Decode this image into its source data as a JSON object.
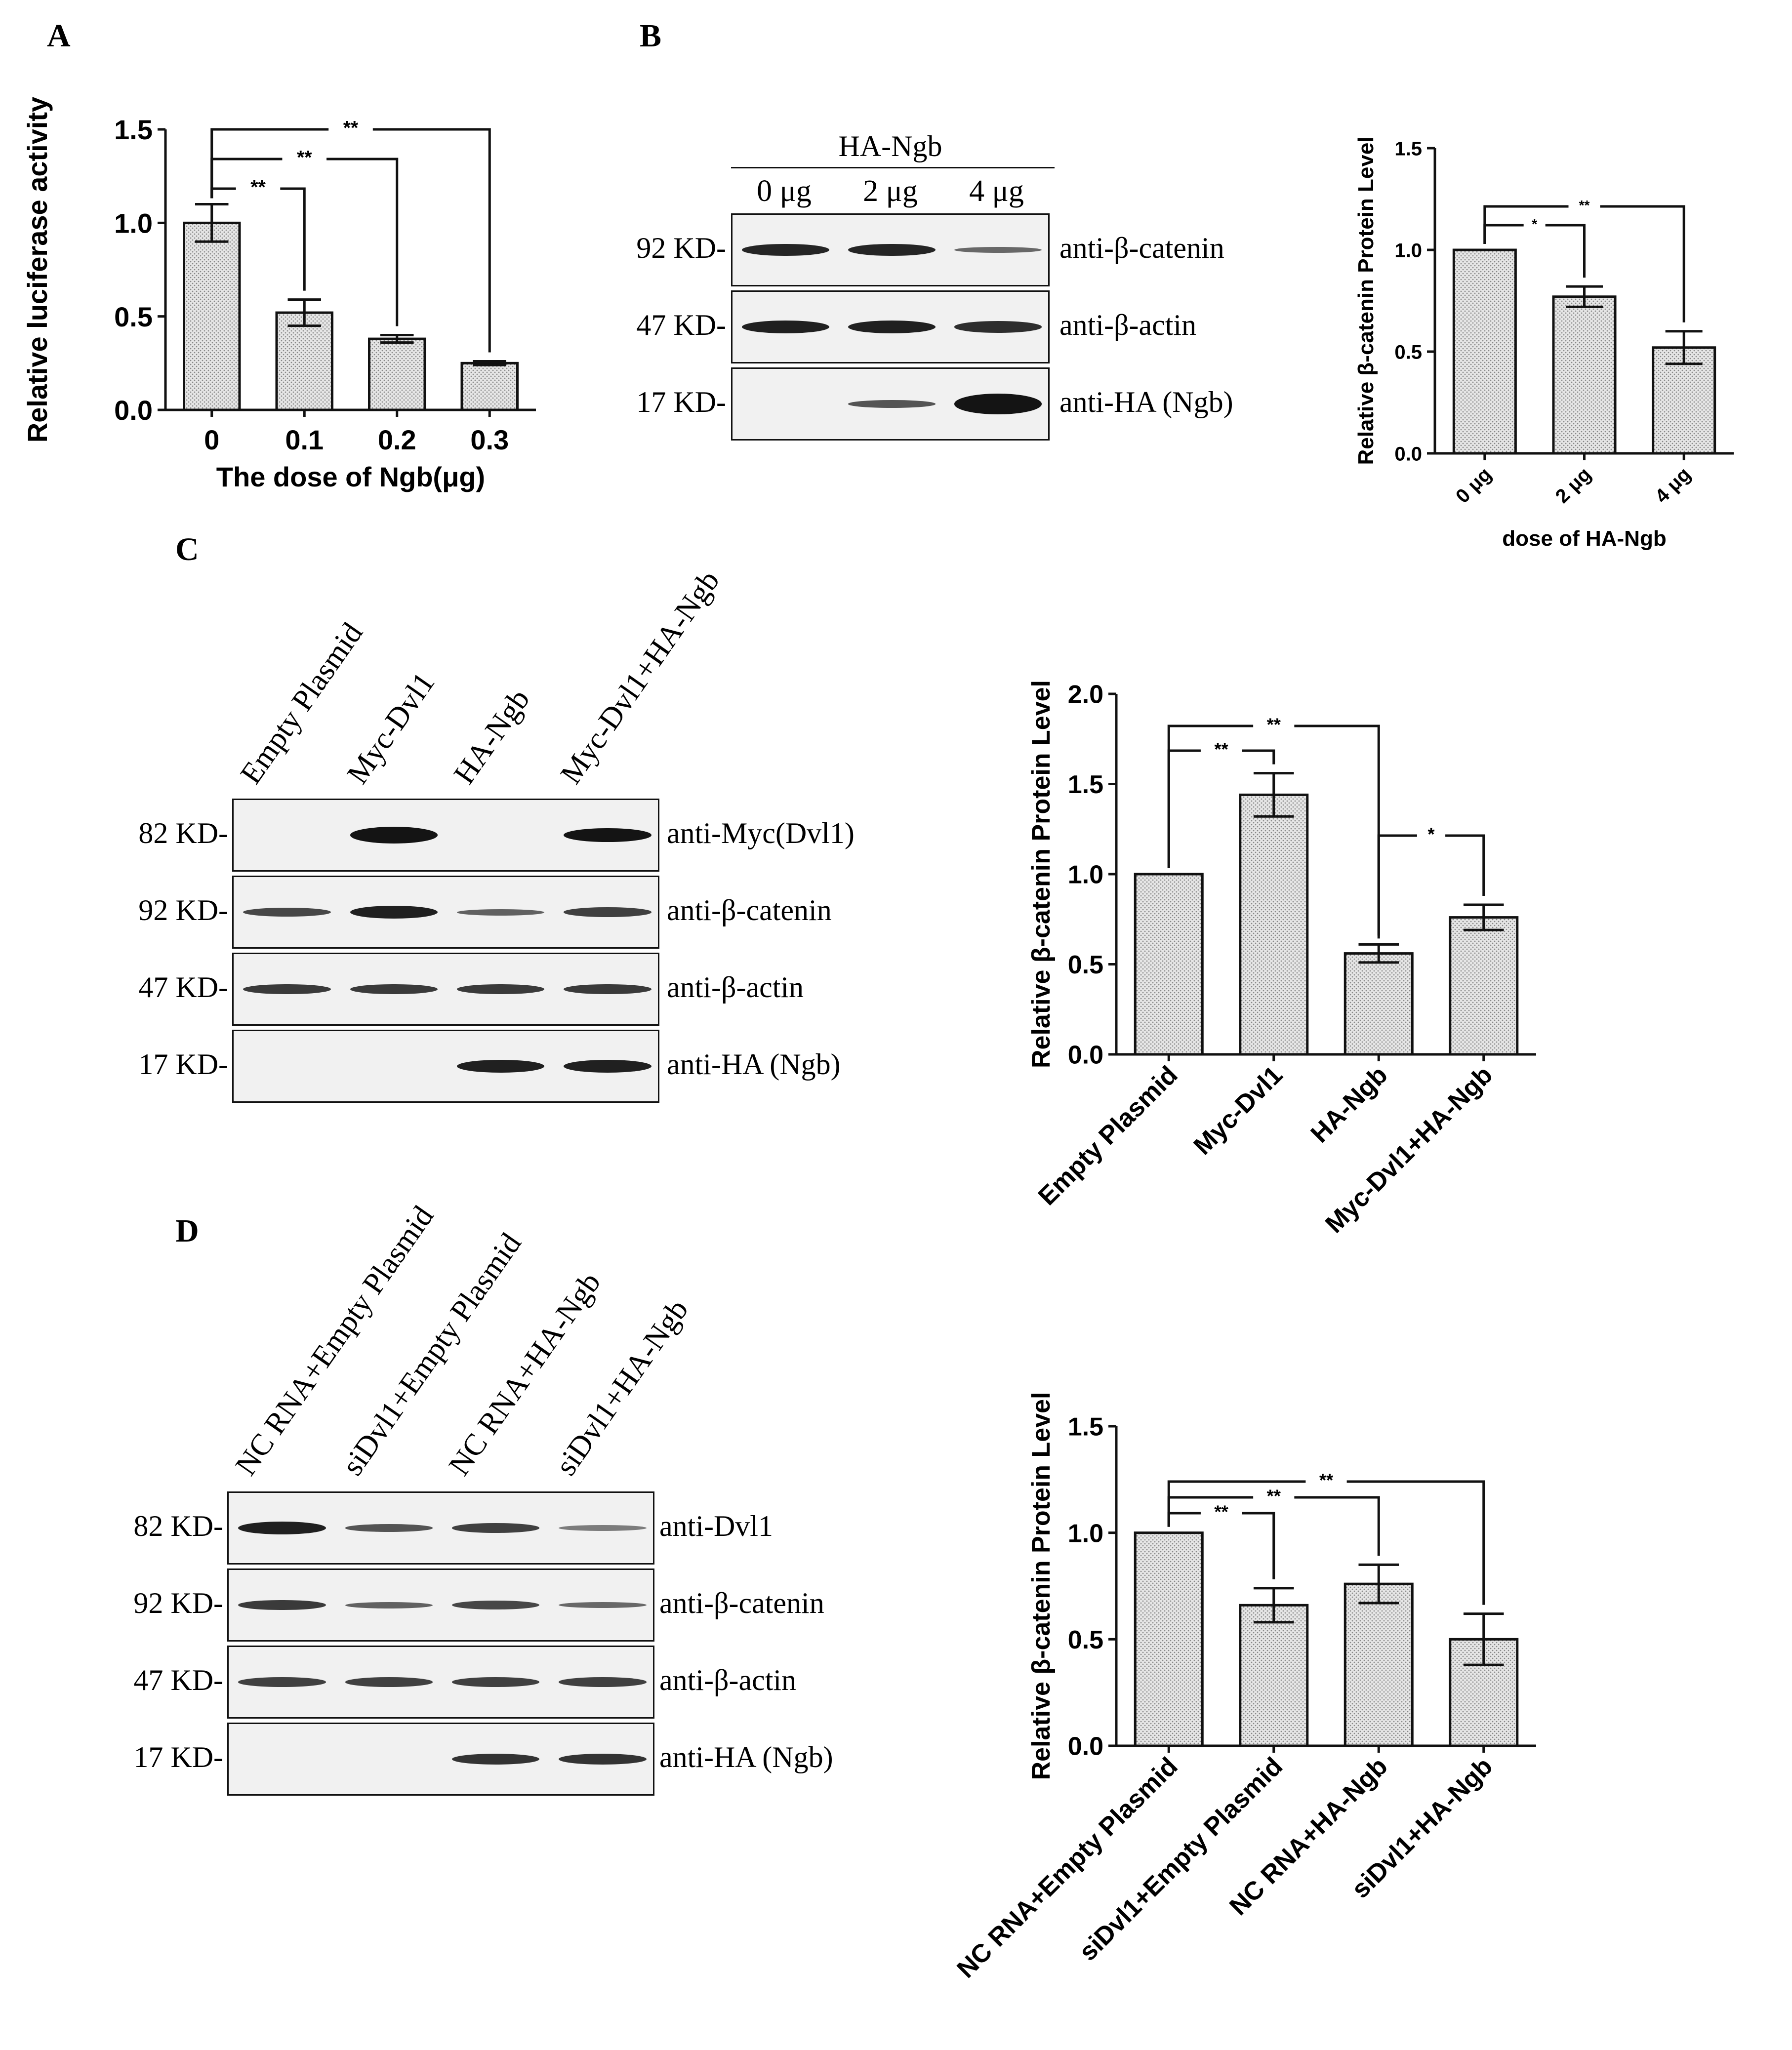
{
  "colors": {
    "bar_fill": "#dcdcdc",
    "bar_stroke": "#111111",
    "band": "#141414",
    "blot_bg": "#f1f1f1"
  },
  "panels": {
    "A": {
      "letter": "A"
    },
    "B": {
      "letter": "B",
      "group_label": "HA-Ngb",
      "lanes": [
        "0 μg",
        "2 μg",
        "4 μg"
      ],
      "rows": [
        {
          "kd": "92 KD-",
          "antibody": "anti-β-catenin",
          "bands": [
            0.95,
            0.95,
            0.45
          ]
        },
        {
          "kd": "47 KD-",
          "antibody": "anti-β-actin",
          "bands": [
            1,
            1,
            0.9
          ]
        },
        {
          "kd": "17 KD-",
          "antibody": "anti-HA (Ngb)",
          "bands": [
            0,
            0.6,
            1.6
          ]
        }
      ]
    },
    "C": {
      "letter": "C",
      "lanes": [
        "Empty Plasmid",
        "Myc-Dvl1",
        "HA-Ngb",
        "Myc-Dvl1+HA-Ngb"
      ],
      "rows": [
        {
          "kd": "82 KD-",
          "antibody": "anti-Myc(Dvl1)",
          "bands": [
            0,
            1.3,
            0,
            1.1
          ]
        },
        {
          "kd": "92 KD-",
          "antibody": "anti-β-catenin",
          "bands": [
            0.7,
            1,
            0.5,
            0.75
          ]
        },
        {
          "kd": "47 KD-",
          "antibody": "anti-β-actin",
          "bands": [
            0.8,
            0.8,
            0.8,
            0.8
          ]
        },
        {
          "kd": "17 KD-",
          "antibody": "anti-HA (Ngb)",
          "bands": [
            0,
            0,
            1.0,
            1.0
          ]
        }
      ]
    },
    "D": {
      "letter": "D",
      "lanes": [
        "NC RNA+Empty Plasmid",
        "siDvl1+Empty Plasmid",
        "NC RNA+HA-Ngb",
        "siDvl1+HA-Ngb"
      ],
      "rows": [
        {
          "kd": "82 KD-",
          "antibody": "anti-Dvl1",
          "bands": [
            1,
            0.6,
            0.75,
            0.3
          ]
        },
        {
          "kd": "92 KD-",
          "antibody": "anti-β-catenin",
          "bands": [
            0.8,
            0.5,
            0.7,
            0.45
          ]
        },
        {
          "kd": "47 KD-",
          "antibody": "anti-β-actin",
          "bands": [
            0.75,
            0.75,
            0.75,
            0.75
          ]
        },
        {
          "kd": "17 KD-",
          "antibody": "anti-HA (Ngb)",
          "bands": [
            0,
            0,
            0.85,
            0.85
          ]
        }
      ]
    }
  },
  "chart_data": [
    {
      "id": "A",
      "type": "bar",
      "categories": [
        "0",
        "0.1",
        "0.2",
        "0.3"
      ],
      "values": [
        1.0,
        0.52,
        0.38,
        0.25
      ],
      "errors": [
        0.1,
        0.07,
        0.02,
        0.01
      ],
      "xlabel": "The dose of Ngb(μg)",
      "ylabel": "Relative luciferase activity",
      "ylim": [
        0,
        1.5
      ],
      "yticks": [
        "0.0",
        "0.5",
        "1.0",
        "1.5"
      ],
      "significance": [
        {
          "from": 0,
          "to": 1,
          "label": "**"
        },
        {
          "from": 0,
          "to": 2,
          "label": "**"
        },
        {
          "from": 0,
          "to": 3,
          "label": "**"
        }
      ],
      "xtick_rotation": 0
    },
    {
      "id": "B",
      "type": "bar",
      "categories": [
        "0 μg",
        "2 μg",
        "4 μg"
      ],
      "values": [
        1.0,
        0.77,
        0.52
      ],
      "errors": [
        0,
        0.05,
        0.08
      ],
      "xlabel": "dose of HA-Ngb",
      "ylabel": "Relative β-catenin Protein Level",
      "ylim": [
        0,
        1.5
      ],
      "yticks": [
        "0.0",
        "0.5",
        "1.0",
        "1.5"
      ],
      "significance": [
        {
          "from": 0,
          "to": 1,
          "label": "*"
        },
        {
          "from": 0,
          "to": 2,
          "label": "**"
        }
      ],
      "xtick_rotation": -45
    },
    {
      "id": "C",
      "type": "bar",
      "categories": [
        "Empty Plasmid",
        "Myc-Dvl1",
        "HA-Ngb",
        "Myc-Dvl1+HA-Ngb"
      ],
      "values": [
        1.0,
        1.44,
        0.56,
        0.76
      ],
      "errors": [
        0,
        0.12,
        0.05,
        0.07
      ],
      "xlabel": "",
      "ylabel": "Relative β-catenin Protein Level",
      "ylim": [
        0,
        2.0
      ],
      "yticks": [
        "0.0",
        "0.5",
        "1.0",
        "1.5",
        "2.0"
      ],
      "significance": [
        {
          "from": 0,
          "to": 1,
          "label": "**"
        },
        {
          "from": 0,
          "to": 2,
          "label": "**"
        },
        {
          "from": 2,
          "to": 3,
          "label": "*"
        }
      ],
      "xtick_rotation": -45
    },
    {
      "id": "D",
      "type": "bar",
      "categories": [
        "NC RNA+Empty Plasmid",
        "siDvl1+Empty Plasmid",
        "NC RNA+HA-Ngb",
        "siDvl1+HA-Ngb"
      ],
      "values": [
        1.0,
        0.66,
        0.76,
        0.5
      ],
      "errors": [
        0,
        0.08,
        0.09,
        0.12
      ],
      "xlabel": "",
      "ylabel": "Relative β-catenin Protein Level",
      "ylim": [
        0,
        1.5
      ],
      "yticks": [
        "0.0",
        "0.5",
        "1.0",
        "1.5"
      ],
      "significance": [
        {
          "from": 0,
          "to": 1,
          "label": "**"
        },
        {
          "from": 0,
          "to": 2,
          "label": "**"
        },
        {
          "from": 0,
          "to": 3,
          "label": "**"
        }
      ],
      "xtick_rotation": -45
    }
  ]
}
